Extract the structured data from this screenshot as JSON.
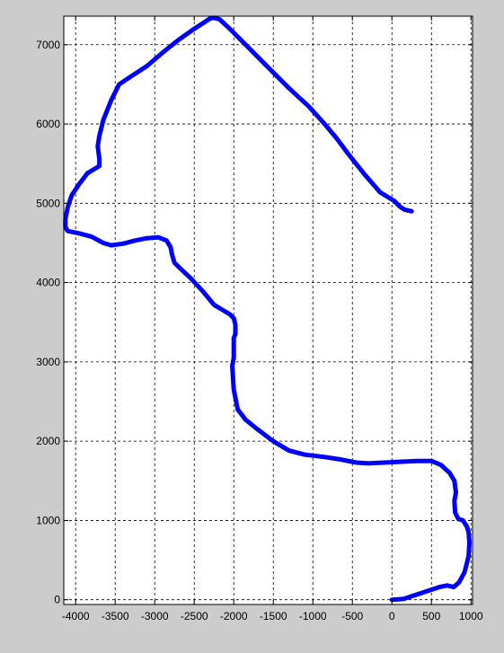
{
  "chart_data": {
    "type": "line",
    "title": "",
    "xlabel": "",
    "ylabel": "",
    "xlim": [
      -4150,
      1020
    ],
    "ylim": [
      -60,
      7360
    ],
    "grid": true,
    "grid_style": "dashed",
    "x_ticks": [
      -4000,
      -3500,
      -3000,
      -2500,
      -2000,
      -1500,
      -1000,
      -500,
      0,
      500,
      1000
    ],
    "y_ticks": [
      0,
      1000,
      2000,
      3000,
      4000,
      5000,
      6000,
      7000
    ],
    "colors": {
      "figure_background": "#cccccc",
      "axes_background": "#ffffff",
      "line": "#0000ff",
      "grid": "#000000"
    },
    "series": [
      {
        "color": "#0000ff",
        "x": [
          0,
          150,
          300,
          450,
          600,
          700,
          780,
          850,
          920,
          970,
          980,
          970,
          950,
          900,
          840,
          800,
          790,
          810,
          790,
          730,
          620,
          500,
          320,
          100,
          -100,
          -300,
          -450,
          -650,
          -850,
          -1100,
          -1300,
          -1500,
          -1700,
          -1850,
          -1950,
          -2000,
          -2020,
          -2000,
          -2000,
          -1980,
          -1980,
          -2000,
          -2050,
          -2150,
          -2250,
          -2400,
          -2550,
          -2700,
          -2750,
          -2780,
          -2800,
          -2850,
          -2950,
          -3100,
          -3250,
          -3400,
          -3550,
          -3650,
          -3800,
          -3950,
          -4100,
          -4130,
          -4130,
          -4100,
          -4050,
          -3950,
          -3850,
          -3750,
          -3700,
          -3700,
          -3720,
          -3700,
          -3650,
          -3550,
          -3450,
          -3300,
          -3100,
          -2900,
          -2700,
          -2500,
          -2300,
          -2250,
          -2180,
          -2050,
          -1800,
          -1550,
          -1300,
          -1050,
          -850,
          -700,
          -550,
          -350,
          -150,
          30,
          100,
          160,
          250
        ],
        "y": [
          0,
          10,
          60,
          110,
          160,
          180,
          160,
          220,
          350,
          550,
          720,
          850,
          920,
          1000,
          1020,
          1100,
          1250,
          1350,
          1500,
          1600,
          1700,
          1750,
          1750,
          1740,
          1730,
          1720,
          1730,
          1770,
          1800,
          1830,
          1880,
          2000,
          2150,
          2270,
          2400,
          2650,
          2950,
          3050,
          3300,
          3350,
          3470,
          3550,
          3600,
          3660,
          3720,
          3900,
          4060,
          4200,
          4250,
          4350,
          4450,
          4530,
          4570,
          4560,
          4530,
          4490,
          4470,
          4500,
          4580,
          4620,
          4650,
          4700,
          4800,
          4950,
          5100,
          5250,
          5380,
          5440,
          5470,
          5560,
          5720,
          5850,
          6050,
          6300,
          6500,
          6600,
          6730,
          6900,
          7060,
          7200,
          7330,
          7340,
          7320,
          7200,
          6950,
          6700,
          6450,
          6220,
          6000,
          5820,
          5620,
          5370,
          5140,
          5030,
          4960,
          4920,
          4900
        ]
      }
    ]
  }
}
